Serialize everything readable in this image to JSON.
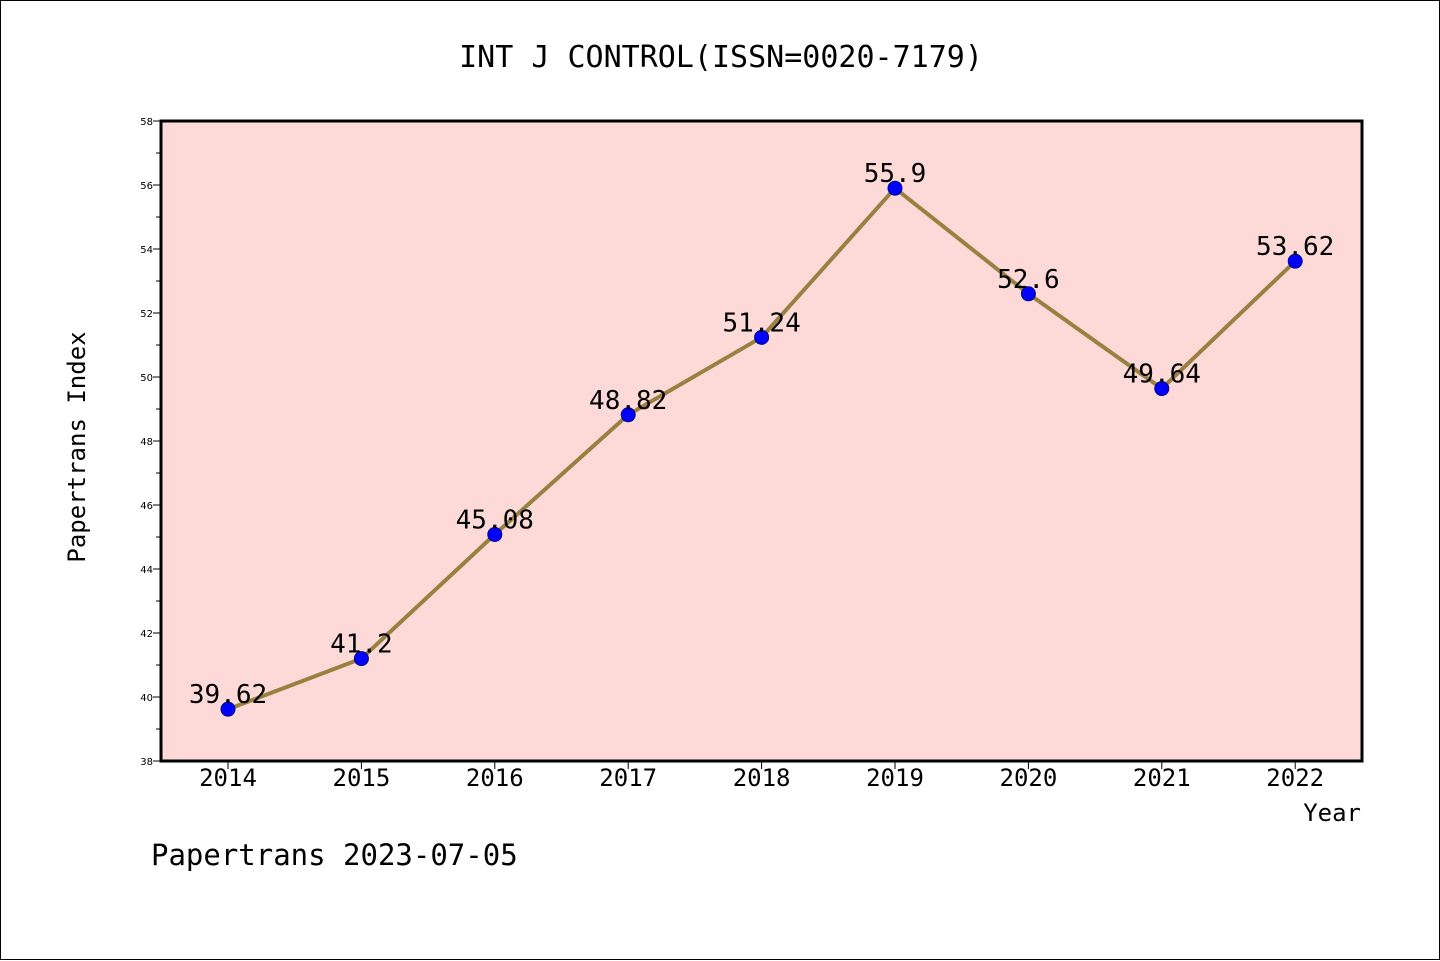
{
  "chart_data": {
    "type": "line",
    "title": "INT J CONTROL(ISSN=0020-7179)",
    "xlabel": "Year",
    "ylabel": "Papertrans Index",
    "x": [
      "2014",
      "2015",
      "2016",
      "2017",
      "2018",
      "2019",
      "2020",
      "2021",
      "2022"
    ],
    "series": [
      {
        "values": [
          39.62,
          41.2,
          45.08,
          48.82,
          51.24,
          55.9,
          52.6,
          49.64,
          53.62
        ],
        "labels": [
          "39.62",
          "41.2",
          "45.08",
          "48.82",
          "51.24",
          "55.9",
          "52.6",
          "49.64",
          "53.62"
        ]
      }
    ],
    "ylim": [
      38,
      58
    ],
    "yticks": [
      "38",
      "40",
      "42",
      "44",
      "46",
      "48",
      "50",
      "52",
      "54",
      "56",
      "58"
    ],
    "grid": false,
    "line_color": "#9a8040",
    "marker_color": "#0000ff",
    "plot_background": "#fddad8"
  },
  "footer": "Papertrans 2023-07-05"
}
